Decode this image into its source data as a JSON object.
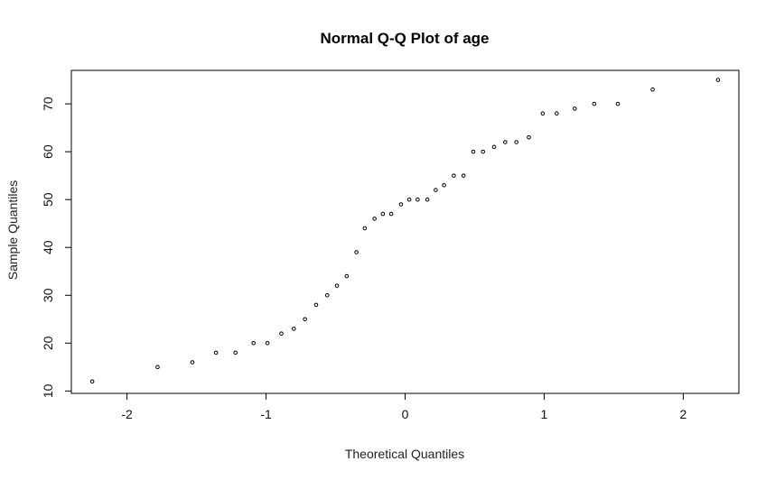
{
  "chart_data": {
    "type": "scatter",
    "title": "Normal Q-Q Plot of age",
    "xlabel": "Theoretical Quantiles",
    "ylabel": "Sample Quantiles",
    "xlim": [
      -2.4,
      2.4
    ],
    "ylim": [
      9.5,
      77
    ],
    "xticks": [
      -2,
      -1,
      0,
      1,
      2
    ],
    "yticks": [
      10,
      20,
      30,
      40,
      50,
      60,
      70
    ],
    "grid": false,
    "legend": "none",
    "points": [
      {
        "x": -2.25,
        "y": 12
      },
      {
        "x": -1.78,
        "y": 15
      },
      {
        "x": -1.53,
        "y": 16
      },
      {
        "x": -1.36,
        "y": 18
      },
      {
        "x": -1.22,
        "y": 18
      },
      {
        "x": -1.09,
        "y": 20
      },
      {
        "x": -0.99,
        "y": 20
      },
      {
        "x": -0.89,
        "y": 22
      },
      {
        "x": -0.8,
        "y": 23
      },
      {
        "x": -0.72,
        "y": 25
      },
      {
        "x": -0.64,
        "y": 28
      },
      {
        "x": -0.56,
        "y": 30
      },
      {
        "x": -0.49,
        "y": 32
      },
      {
        "x": -0.42,
        "y": 34
      },
      {
        "x": -0.35,
        "y": 39
      },
      {
        "x": -0.29,
        "y": 44
      },
      {
        "x": -0.22,
        "y": 46
      },
      {
        "x": -0.16,
        "y": 47
      },
      {
        "x": -0.1,
        "y": 47
      },
      {
        "x": -0.03,
        "y": 49
      },
      {
        "x": 0.03,
        "y": 50
      },
      {
        "x": 0.09,
        "y": 50
      },
      {
        "x": 0.16,
        "y": 50
      },
      {
        "x": 0.22,
        "y": 52
      },
      {
        "x": 0.28,
        "y": 53
      },
      {
        "x": 0.35,
        "y": 55
      },
      {
        "x": 0.42,
        "y": 55
      },
      {
        "x": 0.49,
        "y": 60
      },
      {
        "x": 0.56,
        "y": 60
      },
      {
        "x": 0.64,
        "y": 61
      },
      {
        "x": 0.72,
        "y": 62
      },
      {
        "x": 0.8,
        "y": 62
      },
      {
        "x": 0.89,
        "y": 63
      },
      {
        "x": 0.99,
        "y": 68
      },
      {
        "x": 1.09,
        "y": 68
      },
      {
        "x": 1.22,
        "y": 69
      },
      {
        "x": 1.36,
        "y": 70
      },
      {
        "x": 1.53,
        "y": 70
      },
      {
        "x": 1.78,
        "y": 73
      },
      {
        "x": 2.25,
        "y": 75
      }
    ]
  }
}
